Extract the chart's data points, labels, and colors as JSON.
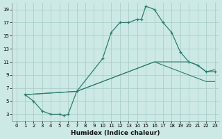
{
  "title": "",
  "xlabel": "Humidex (Indice chaleur)",
  "bg_color": "#cce9e5",
  "grid_color": "#aacfcb",
  "line_color": "#2d7d6e",
  "xlim": [
    -0.5,
    23.5
  ],
  "ylim": [
    2.0,
    20.0
  ],
  "xticks": [
    0,
    1,
    2,
    3,
    4,
    5,
    6,
    7,
    8,
    9,
    10,
    11,
    12,
    13,
    14,
    15,
    16,
    17,
    18,
    19,
    20,
    21,
    22,
    23
  ],
  "yticks": [
    3,
    5,
    7,
    9,
    11,
    13,
    15,
    17,
    19
  ],
  "curve1_x": [
    1,
    2,
    3,
    4,
    5,
    5.5,
    6,
    7,
    10,
    11,
    12,
    13,
    14,
    14.5,
    15,
    16,
    17,
    18,
    19,
    20,
    21,
    22,
    23
  ],
  "curve1_y": [
    6,
    5,
    3.5,
    3,
    3,
    2.8,
    3.0,
    6.5,
    11.5,
    15.5,
    17,
    17,
    17.5,
    17.5,
    19.5,
    19,
    17,
    15.5,
    12.5,
    11,
    10.5,
    9.5,
    9.5
  ],
  "curve2_x": [
    1,
    7,
    16,
    19,
    20,
    21,
    22,
    23
  ],
  "curve2_y": [
    6,
    6.5,
    11.0,
    11.0,
    11.0,
    10.5,
    9.5,
    9.8
  ],
  "curve3_x": [
    1,
    7,
    16,
    19,
    20,
    21,
    22,
    23
  ],
  "curve3_y": [
    6,
    6.5,
    11.0,
    9.5,
    9.0,
    8.5,
    8.0,
    8.0
  ],
  "xlabel_fontsize": 6.5,
  "tick_fontsize": 5
}
